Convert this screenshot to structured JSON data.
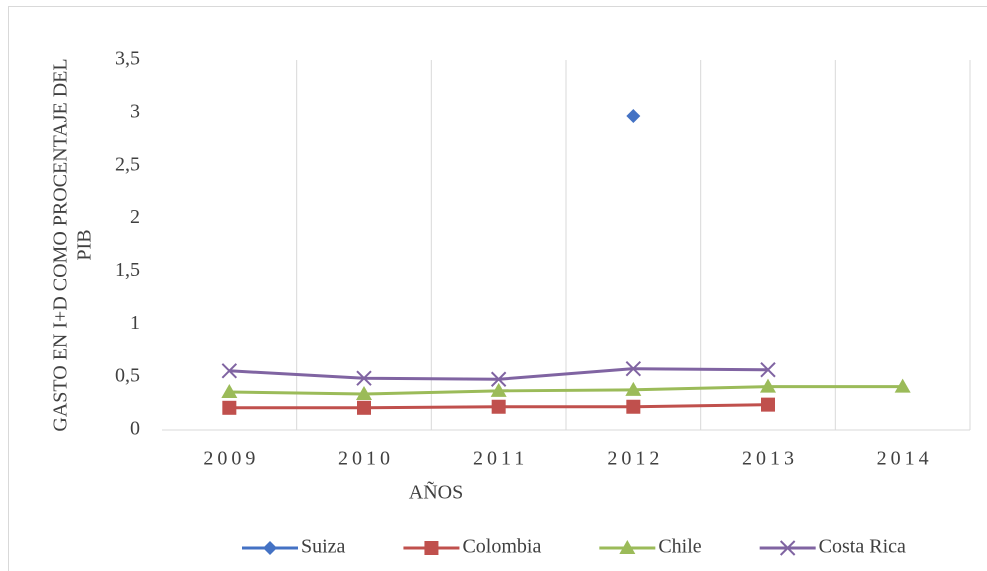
{
  "chart_data": {
    "type": "line",
    "ylabel": [
      "GASTO EN I+D COMO PROCENTAJE DEL",
      "PIB"
    ],
    "xlabel": "AÑOS",
    "categories": [
      "2009",
      "2010",
      "2011",
      "2012",
      "2013",
      "2014"
    ],
    "series": [
      {
        "name": "Suiza",
        "color": "#4472c4",
        "marker": "diamond",
        "values": [
          null,
          null,
          null,
          2.97,
          null,
          null
        ]
      },
      {
        "name": "Colombia",
        "color": "#c0504d",
        "marker": "square",
        "values": [
          0.21,
          0.21,
          0.22,
          0.22,
          0.24,
          null
        ]
      },
      {
        "name": "Chile",
        "color": "#9bbb59",
        "marker": "triangle",
        "values": [
          0.36,
          0.34,
          0.37,
          0.38,
          0.41,
          0.41
        ]
      },
      {
        "name": "Costa Rica",
        "color": "#8064a2",
        "marker": "x",
        "values": [
          0.56,
          0.49,
          0.48,
          0.58,
          0.57,
          null
        ]
      }
    ],
    "ylim": [
      0,
      3.5
    ],
    "yticks": [
      0,
      {
        "value": 0.5,
        "label": "0,5"
      },
      1,
      {
        "value": 1.5,
        "label": "1,5"
      },
      2,
      {
        "value": 2.5,
        "label": "2,5"
      },
      3,
      {
        "value": 3.5,
        "label": "3,5"
      }
    ],
    "grid": true,
    "legend": "bottom"
  }
}
